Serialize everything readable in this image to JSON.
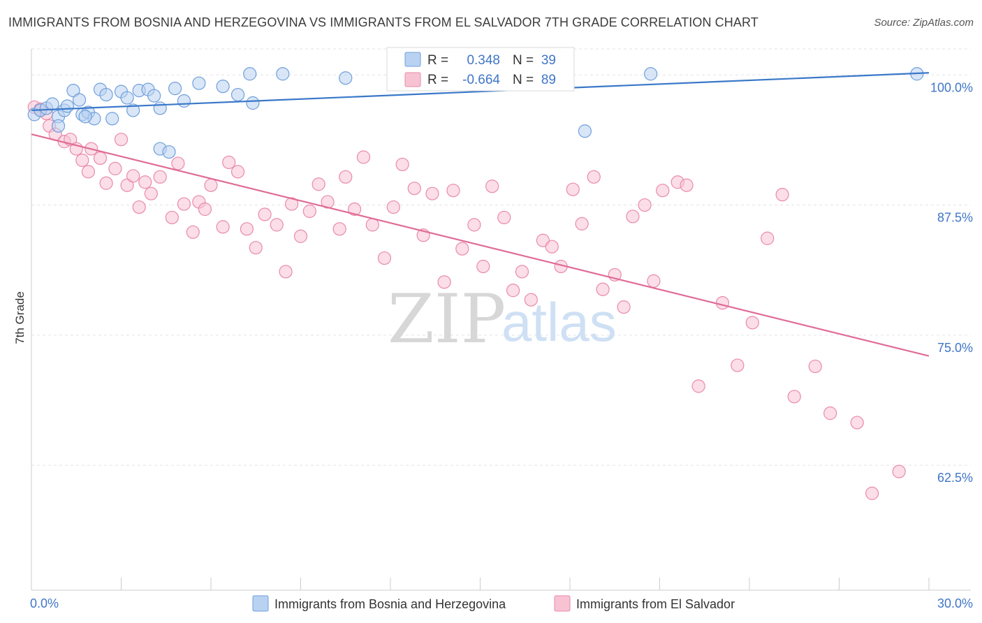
{
  "header": {
    "title": "IMMIGRANTS FROM BOSNIA AND HERZEGOVINA VS IMMIGRANTS FROM EL SALVADOR 7TH GRADE CORRELATION CHART",
    "source": "Source: ZipAtlas.com"
  },
  "watermark": {
    "zip": "ZIP",
    "atlas": "atlas"
  },
  "colors": {
    "blue_fill": "#b9d2f1",
    "blue_stroke": "#6f9fdc",
    "blue_line": "#3a78c9",
    "pink_fill": "#f7c3d3",
    "pink_stroke": "#e98aaa",
    "pink_line": "#e06b97",
    "grid": "#e3e3e3",
    "tick_label": "#3f76c8"
  },
  "stats_legend": {
    "rows": [
      {
        "r_label": "R =",
        "r_value": "0.348",
        "n_label": "N =",
        "n_value": "39"
      },
      {
        "r_label": "R =",
        "r_value": "-0.664",
        "n_label": "N =",
        "n_value": "89"
      }
    ]
  },
  "chart_data": {
    "type": "scatter",
    "ylabel": "7th Grade",
    "xlim": [
      0,
      30
    ],
    "ylim": [
      50.5,
      102.5
    ],
    "x_tick_labels": [
      {
        "value": 0,
        "label": "0.0%"
      },
      {
        "value": 30,
        "label": "30.0%"
      }
    ],
    "y_tick_labels": [
      {
        "value": 100,
        "label": "100.0%"
      },
      {
        "value": 87.5,
        "label": "87.5%"
      },
      {
        "value": 75,
        "label": "75.0%"
      },
      {
        "value": 62.5,
        "label": "62.5%"
      }
    ],
    "grid": true,
    "legend_placement": "top-center",
    "series": [
      {
        "name": "Immigrants from Bosnia and Herzegovina",
        "color": "#6f9fdc",
        "r": 0.348,
        "n": 39,
        "trend": {
          "x": [
            0,
            30
          ],
          "y": [
            96.6,
            100.2
          ]
        },
        "points": [
          [
            0.1,
            96.2
          ],
          [
            0.3,
            96.6
          ],
          [
            0.5,
            96.8
          ],
          [
            0.7,
            97.2
          ],
          [
            0.9,
            96.0
          ],
          [
            1.1,
            96.6
          ],
          [
            1.2,
            97.0
          ],
          [
            1.4,
            98.5
          ],
          [
            1.6,
            97.6
          ],
          [
            1.7,
            96.2
          ],
          [
            1.9,
            96.4
          ],
          [
            2.1,
            95.8
          ],
          [
            2.3,
            98.6
          ],
          [
            2.5,
            98.1
          ],
          [
            2.7,
            95.8
          ],
          [
            3.0,
            98.4
          ],
          [
            3.2,
            97.8
          ],
          [
            3.4,
            96.6
          ],
          [
            3.6,
            98.5
          ],
          [
            3.9,
            98.6
          ],
          [
            4.1,
            98.0
          ],
          [
            4.3,
            96.8
          ],
          [
            4.8,
            98.7
          ],
          [
            5.1,
            97.5
          ],
          [
            5.6,
            99.2
          ],
          [
            6.4,
            98.9
          ],
          [
            6.9,
            98.1
          ],
          [
            7.3,
            100.1
          ],
          [
            7.4,
            97.3
          ],
          [
            8.4,
            100.1
          ],
          [
            10.5,
            99.7
          ],
          [
            15.3,
            100.3
          ],
          [
            18.5,
            94.6
          ],
          [
            20.7,
            100.1
          ],
          [
            29.6,
            100.1
          ],
          [
            0.9,
            95.1
          ],
          [
            1.8,
            96.0
          ],
          [
            4.3,
            92.9
          ],
          [
            4.6,
            92.6
          ]
        ]
      },
      {
        "name": "Immigrants from El Salvador",
        "color": "#e98aaa",
        "r": -0.664,
        "n": 89,
        "trend": {
          "x": [
            0,
            30
          ],
          "y": [
            94.3,
            73.0
          ]
        },
        "points": [
          [
            0.1,
            96.9
          ],
          [
            0.3,
            96.7
          ],
          [
            0.5,
            96.3
          ],
          [
            0.6,
            95.1
          ],
          [
            0.8,
            94.3
          ],
          [
            1.1,
            93.6
          ],
          [
            1.3,
            93.8
          ],
          [
            1.5,
            92.9
          ],
          [
            1.7,
            91.8
          ],
          [
            1.9,
            90.7
          ],
          [
            2.0,
            92.9
          ],
          [
            2.3,
            92.0
          ],
          [
            2.5,
            89.6
          ],
          [
            2.8,
            91.0
          ],
          [
            3.0,
            93.8
          ],
          [
            3.2,
            89.4
          ],
          [
            3.4,
            90.3
          ],
          [
            3.6,
            87.3
          ],
          [
            3.8,
            89.7
          ],
          [
            4.0,
            88.6
          ],
          [
            4.3,
            90.2
          ],
          [
            4.7,
            86.3
          ],
          [
            4.9,
            91.5
          ],
          [
            5.1,
            87.6
          ],
          [
            5.4,
            84.9
          ],
          [
            5.6,
            87.8
          ],
          [
            5.8,
            87.1
          ],
          [
            6.0,
            89.4
          ],
          [
            6.4,
            85.4
          ],
          [
            6.6,
            91.6
          ],
          [
            6.9,
            90.7
          ],
          [
            7.2,
            85.2
          ],
          [
            7.5,
            83.4
          ],
          [
            7.8,
            86.6
          ],
          [
            8.2,
            85.6
          ],
          [
            8.5,
            81.1
          ],
          [
            8.7,
            87.6
          ],
          [
            9.0,
            84.5
          ],
          [
            9.3,
            86.9
          ],
          [
            9.6,
            89.5
          ],
          [
            9.9,
            87.8
          ],
          [
            10.3,
            85.2
          ],
          [
            10.5,
            90.2
          ],
          [
            10.8,
            87.1
          ],
          [
            11.1,
            92.1
          ],
          [
            11.4,
            85.6
          ],
          [
            11.8,
            82.4
          ],
          [
            12.1,
            87.3
          ],
          [
            12.4,
            91.4
          ],
          [
            12.8,
            89.1
          ],
          [
            13.1,
            84.6
          ],
          [
            13.4,
            88.6
          ],
          [
            13.8,
            80.1
          ],
          [
            14.1,
            88.9
          ],
          [
            14.4,
            83.3
          ],
          [
            14.8,
            85.6
          ],
          [
            15.1,
            81.6
          ],
          [
            15.4,
            89.3
          ],
          [
            15.8,
            86.3
          ],
          [
            16.1,
            79.3
          ],
          [
            16.4,
            81.1
          ],
          [
            16.7,
            78.4
          ],
          [
            17.1,
            84.1
          ],
          [
            17.4,
            83.5
          ],
          [
            17.7,
            81.6
          ],
          [
            18.1,
            89.0
          ],
          [
            18.4,
            85.7
          ],
          [
            18.8,
            90.2
          ],
          [
            19.1,
            79.4
          ],
          [
            19.5,
            80.8
          ],
          [
            19.8,
            77.7
          ],
          [
            20.1,
            86.4
          ],
          [
            20.5,
            87.5
          ],
          [
            20.8,
            80.2
          ],
          [
            21.1,
            88.9
          ],
          [
            21.6,
            89.7
          ],
          [
            21.9,
            89.4
          ],
          [
            22.3,
            70.1
          ],
          [
            23.1,
            78.1
          ],
          [
            23.6,
            72.1
          ],
          [
            24.1,
            76.2
          ],
          [
            24.6,
            84.3
          ],
          [
            25.1,
            88.5
          ],
          [
            25.5,
            69.1
          ],
          [
            26.2,
            72.0
          ],
          [
            26.7,
            67.5
          ],
          [
            27.6,
            66.6
          ],
          [
            28.1,
            59.8
          ],
          [
            29.0,
            61.9
          ]
        ]
      }
    ]
  },
  "bottom_legend": {
    "items": [
      {
        "label": "Immigrants from Bosnia and Herzegovina"
      },
      {
        "label": "Immigrants from El Salvador"
      }
    ]
  }
}
